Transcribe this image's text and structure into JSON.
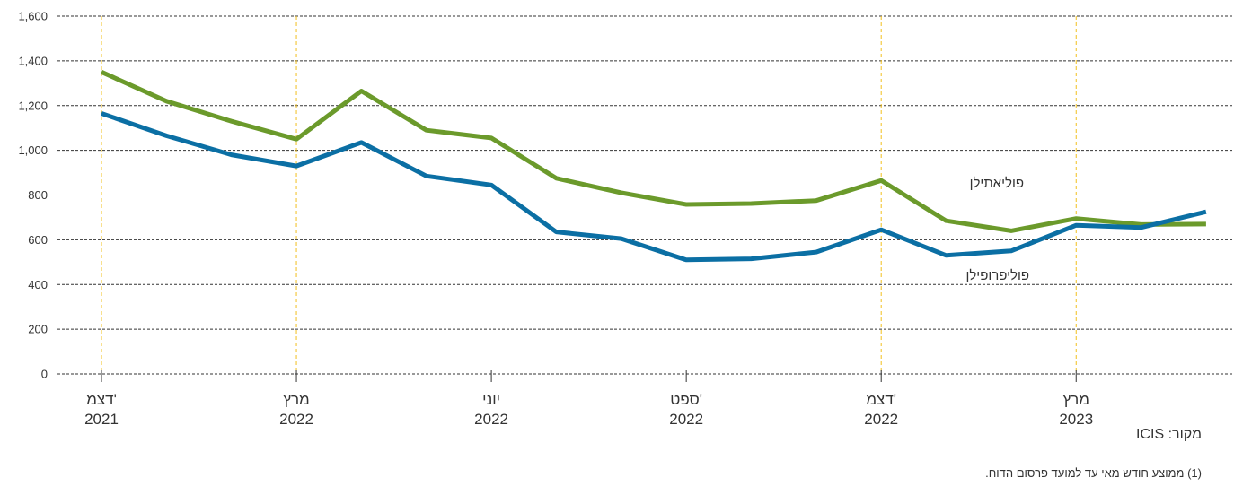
{
  "chart_data": {
    "type": "line",
    "ylim": [
      0,
      1600
    ],
    "yticks": [
      0,
      200,
      400,
      600,
      800,
      1000,
      1200,
      1400,
      1600
    ],
    "ytick_labels": [
      "0",
      "200",
      "400",
      "600",
      "800",
      "1,000",
      "1,200",
      "1,400",
      "1,600"
    ],
    "x": [
      0,
      1,
      2,
      3,
      4,
      5,
      6,
      7,
      8,
      9,
      10,
      11,
      12,
      13,
      14,
      15,
      16,
      17
    ],
    "xticks": [
      {
        "x": 0,
        "line1": "דצמ'",
        "line2": "2021",
        "highlight": true
      },
      {
        "x": 3,
        "line1": "מרץ",
        "line2": "2022",
        "highlight": true
      },
      {
        "x": 6,
        "line1": "יוני",
        "line2": "2022",
        "highlight": false
      },
      {
        "x": 9,
        "line1": "ספט'",
        "line2": "2022",
        "highlight": false
      },
      {
        "x": 12,
        "line1": "דצמ'",
        "line2": "2022",
        "highlight": true
      },
      {
        "x": 15,
        "line1": "מרץ",
        "line2": "2023",
        "highlight": true
      }
    ],
    "series": [
      {
        "name": "פוליאתילן",
        "color": "#6b9a2b",
        "values": [
          1350,
          1220,
          1130,
          1050,
          1265,
          1090,
          1055,
          875,
          810,
          758,
          762,
          775,
          865,
          685,
          640,
          695,
          668,
          670
        ]
      },
      {
        "name": "פוליפרופילן",
        "color": "#0b6fa4",
        "values": [
          1165,
          1065,
          980,
          930,
          1035,
          885,
          845,
          635,
          605,
          510,
          515,
          545,
          645,
          530,
          550,
          665,
          655,
          725
        ]
      }
    ],
    "grid": true
  },
  "source": "מקור: ICIS",
  "footnote": "(1) ממוצע חודש מאי עד למועד פרסום הדוח."
}
